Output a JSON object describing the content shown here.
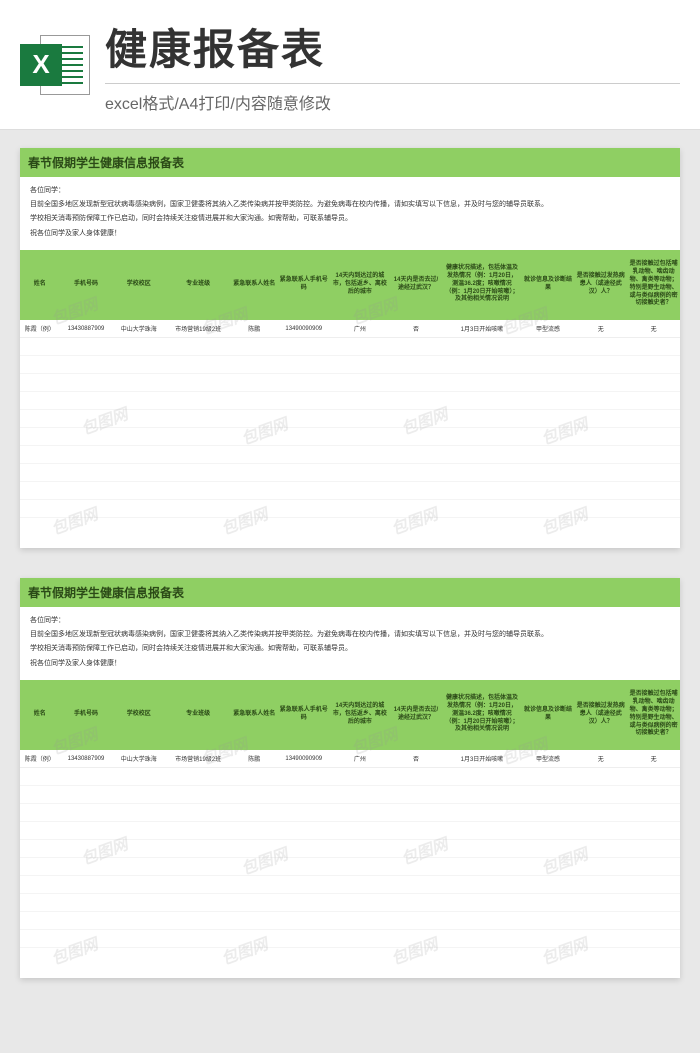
{
  "banner": {
    "x_label": "X",
    "title": "健康报备表",
    "subtitle": "excel格式/A4打印/内容随意修改"
  },
  "sheet": {
    "title": "春节假期学生健康信息报备表",
    "intro_greeting": "各位同学：",
    "intro_line1": "目前全国多地区发现新型冠状病毒感染病例，国家卫健委将其纳入乙类传染病并按甲类防控。为避免病毒在校内传播，请如实填写以下信息，并及时与您的辅导员联系。",
    "intro_line2": "学校相关消毒预防保障工作已启动，同时会持续关注疫情进展并和大家沟通。如需帮助，可联系辅导员。",
    "intro_line3": "祝各位同学及家人身体健康！",
    "columns": [
      "姓名",
      "手机号码",
      "学校校区",
      "专业班级",
      "紧急联系人姓名",
      "紧急联系人手机号码",
      "14天内到达过的城市，包括返乡、离校后的城市",
      "14天内是否去过/途经过武汉？",
      "健康状况描述，包括体温及发热情况（例：1月20日，测温36.2度；咳嗽情况（例：1月20日开始咳嗽）；及其他相关情况说明",
      "就诊信息及诊断结果",
      "是否接触过发热病患人（或途径武汉）人？",
      "是否接触过包括哺乳动物、啮齿动物、禽类等动物；特别是野生动物、或与类似病例的密切接触史者？"
    ],
    "col_widths": [
      "6%",
      "8%",
      "8%",
      "10%",
      "7%",
      "8%",
      "9%",
      "8%",
      "12%",
      "8%",
      "8%",
      "8%"
    ],
    "rows": [
      {
        "name": "陈霞（例）",
        "phone": "13430887909",
        "campus": "中山大学珠海",
        "class": "市场营销19级2班",
        "emg_name": "陈鹏",
        "emg_phone": "13490090909",
        "cities": "广州",
        "wuhan": "否",
        "health": "1月3日开始咳嗽",
        "diag": "甲型流感",
        "contact_fever": "无",
        "contact_animal": "无"
      }
    ],
    "header_bg": "#8fcf63",
    "header_fg": "#2b4a17",
    "page_bg": "#ffffff"
  },
  "watermark_text": "包图网"
}
